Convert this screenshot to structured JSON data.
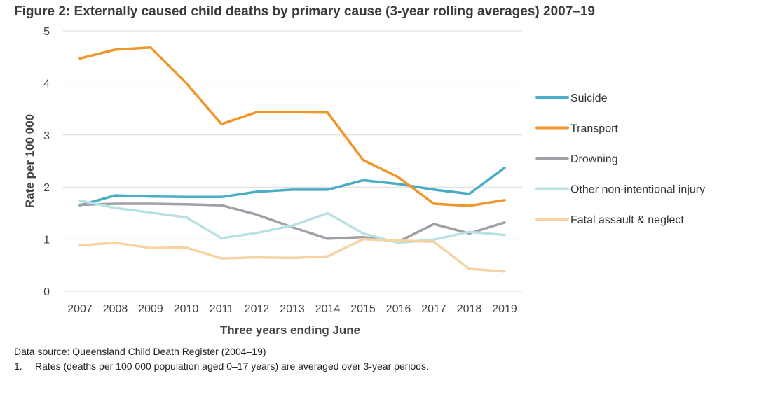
{
  "title": "Figure 2: Externally caused child deaths by primary cause (3-year rolling averages) 2007–19",
  "footer": {
    "source": "Data source: Queensland Child Death Register (2004–19)",
    "note_number": "1.",
    "note_text": "Rates (deaths per 100 000 population aged 0–17 years) are averaged over 3-year periods."
  },
  "chart_data": {
    "type": "line",
    "title": "Figure 2: Externally caused child deaths by primary cause (3-year rolling averages) 2007–19",
    "xlabel": "Three years ending June",
    "ylabel": "Rate per 100 000",
    "x": [
      "2007",
      "2008",
      "2009",
      "2010",
      "2011",
      "2012",
      "2013",
      "2014",
      "2015",
      "2016",
      "2017",
      "2018",
      "2019"
    ],
    "ylim": [
      0,
      5
    ],
    "yticks": [
      "0",
      "1",
      "2",
      "3",
      "4",
      "5"
    ],
    "grid": true,
    "legend": "right",
    "series": [
      {
        "name": "Suicide",
        "color": "#4bacc6",
        "values": [
          1.65,
          1.84,
          1.82,
          1.81,
          1.81,
          1.91,
          1.95,
          1.95,
          2.13,
          2.06,
          1.95,
          1.87,
          2.37
        ]
      },
      {
        "name": "Transport",
        "color": "#f0962a",
        "values": [
          4.47,
          4.64,
          4.68,
          4.0,
          3.21,
          3.44,
          3.44,
          3.43,
          2.52,
          2.19,
          1.68,
          1.64,
          1.75
        ]
      },
      {
        "name": "Drowning",
        "color": "#a0a0a8",
        "values": [
          1.66,
          1.68,
          1.68,
          1.67,
          1.65,
          1.47,
          1.23,
          1.01,
          1.04,
          0.95,
          1.29,
          1.11,
          1.32
        ]
      },
      {
        "name": "Other non-intentional injury",
        "color": "#b8e1e4",
        "values": [
          1.74,
          1.6,
          1.51,
          1.42,
          1.02,
          1.12,
          1.26,
          1.5,
          1.11,
          0.93,
          0.99,
          1.14,
          1.08
        ]
      },
      {
        "name": "Fatal assault & neglect",
        "color": "#f7d3a4",
        "values": [
          0.88,
          0.93,
          0.83,
          0.84,
          0.63,
          0.65,
          0.64,
          0.67,
          1.0,
          0.97,
          0.95,
          0.43,
          0.38
        ]
      }
    ]
  }
}
